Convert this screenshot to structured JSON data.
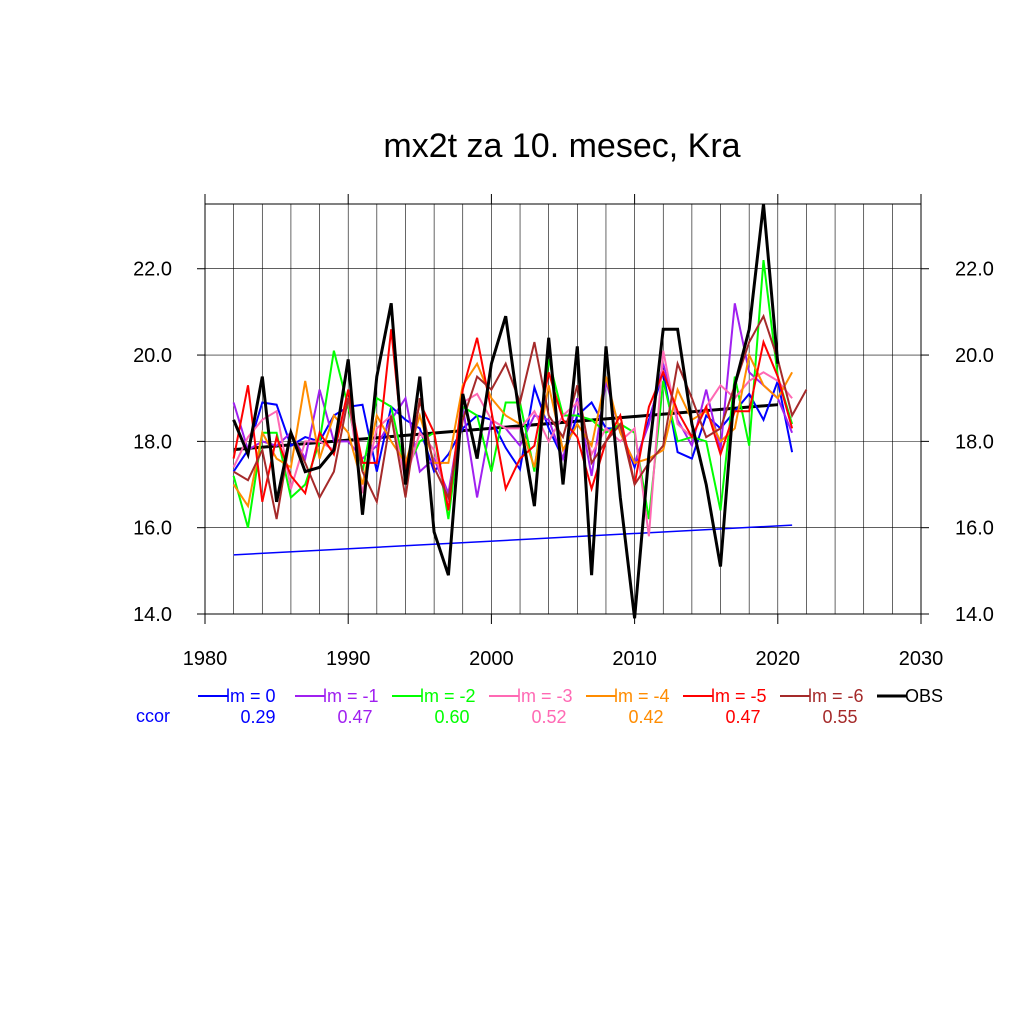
{
  "chart_data": {
    "type": "line",
    "title": "mx2t za 10. mesec, Kra",
    "xlabel": "",
    "ylabel": "",
    "xlim": [
      1980,
      2030
    ],
    "ylim": [
      14.0,
      23.5
    ],
    "x_ticks": [
      1980,
      1990,
      2000,
      2010,
      2020,
      2030
    ],
    "x_tick_labels": [
      "1980",
      "1990",
      "2000",
      "2010",
      "2020",
      "2030"
    ],
    "y_ticks": [
      14,
      16,
      18,
      20,
      22
    ],
    "y_tick_labels": [
      "14.0",
      "16.0",
      "18.0",
      "20.0",
      "22.0"
    ],
    "grid": true,
    "legend_position": "bottom",
    "ccor_label": "ccor",
    "series": [
      {
        "name": "lm = 0",
        "color": "#0000ff",
        "ccor": "0.29",
        "x_start": 1982,
        "values": [
          17.3,
          17.8,
          18.9,
          18.85,
          17.9,
          18.1,
          18.0,
          18.6,
          18.8,
          18.85,
          17.3,
          18.8,
          18.5,
          18.3,
          17.3,
          17.7,
          18.3,
          18.6,
          18.5,
          17.85,
          17.35,
          19.25,
          18.3,
          17.6,
          18.6,
          18.9,
          18.3,
          18.3,
          17.4,
          18.5,
          19.6,
          17.75,
          17.6,
          18.6,
          18.3,
          18.7,
          19.1,
          18.5,
          19.4,
          17.75
        ]
      },
      {
        "name": "lm = -1",
        "color": "#a020f0",
        "ccor": "0.47",
        "x_start": 1982,
        "values": [
          18.9,
          17.8,
          18.0,
          17.9,
          18.2,
          17.6,
          19.2,
          18.0,
          18.0,
          17.6,
          17.9,
          18.5,
          19.0,
          17.3,
          17.6,
          16.8,
          18.8,
          16.7,
          18.5,
          18.3,
          17.9,
          18.6,
          18.5,
          17.6,
          19.0,
          17.2,
          19.4,
          18.2,
          17.5,
          18.4,
          19.8,
          18.5,
          17.9,
          19.2,
          17.8,
          21.2,
          19.6,
          19.3,
          19.0,
          18.2
        ]
      },
      {
        "name": "lm = -2",
        "color": "#00ff00",
        "ccor": "0.60",
        "x_start": 1982,
        "values": [
          17.2,
          16.0,
          18.2,
          18.2,
          16.7,
          17.0,
          18.0,
          20.1,
          18.8,
          17.3,
          19.0,
          18.8,
          17.3,
          18.0,
          18.2,
          16.2,
          18.8,
          18.6,
          17.3,
          18.9,
          18.9,
          17.3,
          19.9,
          18.6,
          18.6,
          18.5,
          18.2,
          18.4,
          18.2,
          16.2,
          19.4,
          18.0,
          18.1,
          18.0,
          16.4,
          19.5,
          17.9,
          22.2,
          19.5,
          18.4
        ]
      },
      {
        "name": "lm = -3",
        "color": "#ff69b4",
        "ccor": "0.52",
        "x_start": 1982,
        "values": [
          17.4,
          18.1,
          18.5,
          18.7,
          16.9,
          18.0,
          18.0,
          17.8,
          19.0,
          16.8,
          18.3,
          18.6,
          17.1,
          18.2,
          17.8,
          16.6,
          18.9,
          19.1,
          18.5,
          18.3,
          18.3,
          18.7,
          18.0,
          18.6,
          18.9,
          17.7,
          18.3,
          18.0,
          18.3,
          15.8,
          20.1,
          18.4,
          18.1,
          18.8,
          19.3,
          19.0,
          19.4,
          19.6,
          19.4,
          19.0
        ]
      },
      {
        "name": "lm = -4",
        "color": "#ff8c00",
        "ccor": "0.42",
        "x_start": 1982,
        "values": [
          17.0,
          16.5,
          18.2,
          17.6,
          17.4,
          19.4,
          17.6,
          18.6,
          18.2,
          17.0,
          18.6,
          18.0,
          17.5,
          18.6,
          17.5,
          17.5,
          19.3,
          19.8,
          19.0,
          18.6,
          18.4,
          17.4,
          19.3,
          17.8,
          18.4,
          17.9,
          19.5,
          18.2,
          17.5,
          17.6,
          17.8,
          19.2,
          18.5,
          18.7,
          18.0,
          18.3,
          20.0,
          19.3,
          19.0,
          19.6
        ]
      },
      {
        "name": "lm = -5",
        "color": "#ff0000",
        "ccor": "0.47",
        "x_start": 1982,
        "values": [
          17.6,
          19.3,
          16.6,
          18.1,
          17.2,
          16.8,
          18.2,
          17.7,
          19.2,
          17.5,
          17.5,
          20.6,
          17.3,
          18.9,
          18.2,
          16.4,
          19.2,
          20.4,
          18.7,
          16.9,
          17.6,
          17.9,
          19.6,
          18.5,
          18.1,
          16.9,
          18.0,
          18.6,
          17.0,
          18.8,
          19.6,
          18.7,
          18.1,
          18.8,
          17.7,
          18.7,
          18.7,
          20.3,
          19.5,
          18.3
        ]
      },
      {
        "name": "lm = -6",
        "color": "#a52a2a",
        "ccor": "0.55",
        "x_start": 1982,
        "values": [
          17.3,
          17.1,
          17.8,
          16.2,
          18.2,
          17.5,
          16.7,
          17.3,
          19.0,
          17.3,
          16.6,
          18.6,
          16.7,
          19.0,
          17.4,
          16.7,
          18.5,
          19.5,
          19.2,
          19.8,
          18.9,
          20.3,
          18.6,
          18.1,
          19.3,
          17.5,
          18.0,
          18.4,
          17.0,
          17.5,
          17.9,
          19.8,
          19.0,
          18.1,
          18.3,
          19.3,
          20.3,
          20.9,
          19.9,
          18.6,
          19.2
        ]
      },
      {
        "name": "OBS",
        "color": "#000000",
        "ccor": "",
        "x_start": 1982,
        "values": [
          18.5,
          17.7,
          19.5,
          16.6,
          18.2,
          17.3,
          17.4,
          17.8,
          19.9,
          16.3,
          19.5,
          21.2,
          17.0,
          19.5,
          15.9,
          14.9,
          19.1,
          17.6,
          19.8,
          20.9,
          18.5,
          16.5,
          20.4,
          17.0,
          20.2,
          14.9,
          20.2,
          16.7,
          13.9,
          17.7,
          20.6,
          20.6,
          18.4,
          17.0,
          15.1,
          19.3,
          20.6,
          23.5,
          19.8
        ]
      }
    ],
    "trend_lines": [
      {
        "series": "lm = 0",
        "color": "#0000ff",
        "x": [
          1982,
          2021
        ],
        "y": [
          15.37,
          16.06
        ]
      },
      {
        "series": "OBS",
        "color": "#000000",
        "x": [
          1982,
          2020
        ],
        "y": [
          17.81,
          18.85
        ]
      }
    ]
  }
}
